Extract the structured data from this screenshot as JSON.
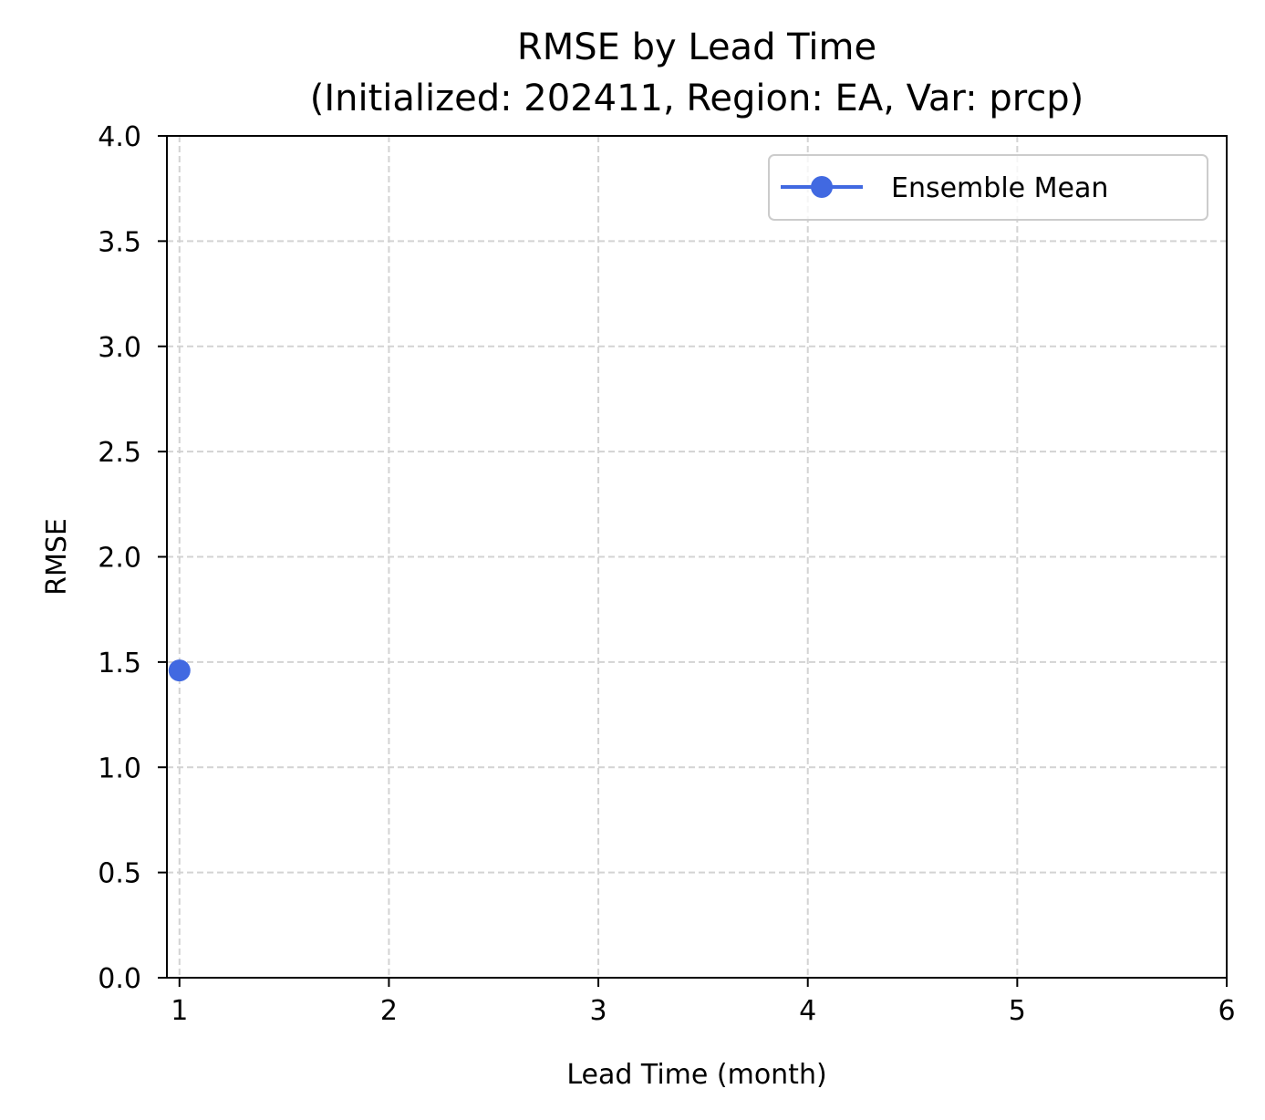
{
  "chart_data": {
    "type": "line",
    "title": "RMSE by Lead Time",
    "subtitle": "(Initialized: 202411, Region: EA, Var: prcp)",
    "xlabel": "Lead Time (month)",
    "ylabel": "RMSE",
    "xlim": [
      0.94,
      6
    ],
    "ylim": [
      0,
      4
    ],
    "xticks": [
      1,
      2,
      3,
      4,
      5,
      6
    ],
    "yticks": [
      0.0,
      0.5,
      1.0,
      1.5,
      2.0,
      2.5,
      3.0,
      3.5,
      4.0
    ],
    "xtick_labels": [
      "1",
      "2",
      "3",
      "4",
      "5",
      "6"
    ],
    "ytick_labels": [
      "0.0",
      "0.5",
      "1.0",
      "1.5",
      "2.0",
      "2.5",
      "3.0",
      "3.5",
      "4.0"
    ],
    "grid": true,
    "grid_style": "dashed",
    "legend_position": "top-right",
    "series": [
      {
        "name": "Ensemble Mean",
        "color": "#4169e1",
        "marker": "circle",
        "x": [
          1
        ],
        "y": [
          1.46
        ]
      }
    ]
  }
}
